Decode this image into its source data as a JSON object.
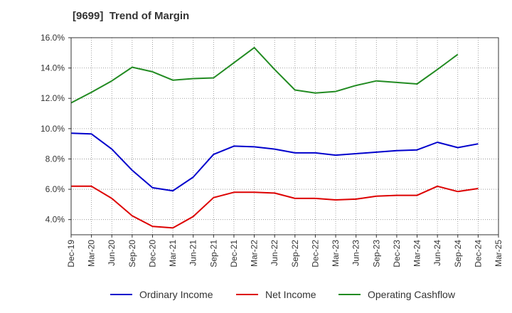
{
  "chart_data": {
    "type": "line",
    "title": "[9699]  Trend of Margin",
    "xlabel": "",
    "ylabel": "",
    "categories": [
      "Dec-19",
      "Mar-20",
      "Jun-20",
      "Sep-20",
      "Dec-20",
      "Mar-21",
      "Jun-21",
      "Sep-21",
      "Dec-21",
      "Mar-22",
      "Jun-22",
      "Sep-22",
      "Dec-22",
      "Mar-23",
      "Jun-23",
      "Sep-23",
      "Dec-23",
      "Mar-24",
      "Jun-24",
      "Sep-24",
      "Dec-24",
      "Mar-25"
    ],
    "ylim": [
      3.0,
      16.0
    ],
    "yticks": [
      4.0,
      6.0,
      8.0,
      10.0,
      12.0,
      14.0,
      16.0
    ],
    "ytick_labels": [
      "4.0%",
      "6.0%",
      "8.0%",
      "10.0%",
      "12.0%",
      "14.0%",
      "16.0%"
    ],
    "grid": true,
    "legend_position": "bottom",
    "series": [
      {
        "name": "Ordinary Income",
        "color": "#0000cc",
        "values": [
          9.7,
          9.65,
          8.65,
          7.25,
          6.1,
          5.9,
          6.8,
          8.3,
          8.85,
          8.8,
          8.65,
          8.4,
          8.4,
          8.25,
          8.35,
          8.45,
          8.55,
          8.6,
          9.1,
          8.75,
          9.0,
          null
        ]
      },
      {
        "name": "Net Income",
        "color": "#dd0000",
        "values": [
          6.2,
          6.2,
          5.4,
          4.25,
          3.55,
          3.45,
          4.2,
          5.45,
          5.8,
          5.8,
          5.75,
          5.4,
          5.4,
          5.3,
          5.35,
          5.55,
          5.6,
          5.6,
          6.2,
          5.85,
          6.05,
          null
        ]
      },
      {
        "name": "Operating Cashflow",
        "color": "#228b22",
        "values": [
          11.7,
          12.4,
          13.15,
          14.05,
          13.75,
          13.2,
          13.3,
          13.35,
          14.35,
          15.35,
          13.9,
          12.55,
          12.35,
          12.45,
          12.85,
          13.15,
          13.05,
          12.95,
          13.9,
          14.9,
          null,
          null
        ]
      }
    ]
  }
}
